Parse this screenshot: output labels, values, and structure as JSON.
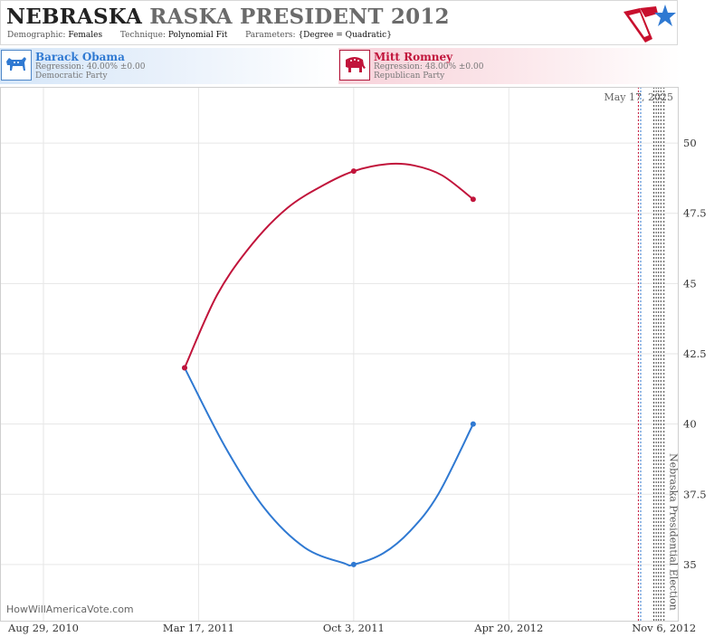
{
  "header": {
    "title_state": "NEBRASKA",
    "title_middle": "RASKA PRESIDENT",
    "title_year": "2012",
    "demographic_label": "Demographic:",
    "demographic_value": "Females",
    "technique_label": "Technique:",
    "technique_value": "Polynomial Fit",
    "parameters_label": "Parameters:",
    "parameters_value": "{Degree = Quadratic}",
    "logo_icon": "star-flag-logo-icon"
  },
  "candidates": [
    {
      "name": "Barack Obama",
      "regression": "Regression: 40.00% ±0.00",
      "party": "Democratic Party",
      "icon": "donkey-icon",
      "color": "#2f79d2"
    },
    {
      "name": "Mitt Romney",
      "regression": "Regression: 48.00% ±0.00",
      "party": "Republican Party",
      "icon": "elephant-icon",
      "color": "#c1143b"
    }
  ],
  "watermark": "HowWillAmericaVote.com",
  "chart_data": {
    "type": "line",
    "date_label": "May 17, 2025",
    "election_label": "Nebraska Presidential Election",
    "x_ticks": [
      "Aug 29, 2010",
      "Mar 17, 2011",
      "Oct 3, 2011",
      "Apr 20, 2012",
      "Nov 6, 2012"
    ],
    "x_range": [
      "2010-07-04",
      "2012-11-25"
    ],
    "y_ticks": [
      35,
      37.5,
      40,
      42.5,
      45,
      47.5,
      50
    ],
    "ylim": [
      33,
      52
    ],
    "grid": true,
    "election_date": "2012-11-06",
    "series": [
      {
        "name": "Barack Obama",
        "color": "#2f79d2",
        "points": [
          {
            "date": "2011-02-27",
            "value": 42
          },
          {
            "date": "2011-10-03",
            "value": 35
          },
          {
            "date": "2012-03-05",
            "value": 40
          }
        ],
        "curve": [
          {
            "date": "2011-02-27",
            "value": 42
          },
          {
            "date": "2011-04-20",
            "value": 39.2
          },
          {
            "date": "2011-06-10",
            "value": 37.0
          },
          {
            "date": "2011-08-01",
            "value": 35.6
          },
          {
            "date": "2011-09-20",
            "value": 35.05
          },
          {
            "date": "2011-10-03",
            "value": 35
          },
          {
            "date": "2011-11-10",
            "value": 35.4
          },
          {
            "date": "2011-12-15",
            "value": 36.2
          },
          {
            "date": "2012-01-20",
            "value": 37.5
          },
          {
            "date": "2012-03-05",
            "value": 40
          }
        ]
      },
      {
        "name": "Mitt Romney",
        "color": "#c1143b",
        "points": [
          {
            "date": "2011-02-27",
            "value": 42
          },
          {
            "date": "2011-10-03",
            "value": 49
          },
          {
            "date": "2012-03-05",
            "value": 48
          }
        ],
        "curve": [
          {
            "date": "2011-02-27",
            "value": 42
          },
          {
            "date": "2011-04-10",
            "value": 44.6
          },
          {
            "date": "2011-05-25",
            "value": 46.4
          },
          {
            "date": "2011-07-10",
            "value": 47.7
          },
          {
            "date": "2011-08-25",
            "value": 48.5
          },
          {
            "date": "2011-10-03",
            "value": 49
          },
          {
            "date": "2011-11-15",
            "value": 49.25
          },
          {
            "date": "2011-12-20",
            "value": 49.2
          },
          {
            "date": "2012-01-25",
            "value": 48.85
          },
          {
            "date": "2012-03-05",
            "value": 48
          }
        ]
      }
    ],
    "reference_lines": [
      {
        "date": "2012-10-04",
        "color": "#c1143b"
      },
      {
        "date": "2012-10-07",
        "color": "#2f79d2"
      },
      {
        "date": "2012-10-24",
        "color": "#444444"
      },
      {
        "date": "2012-10-27",
        "color": "#444444"
      },
      {
        "date": "2012-10-30",
        "color": "#444444"
      },
      {
        "date": "2012-11-02",
        "color": "#444444"
      },
      {
        "date": "2012-11-06",
        "color": "#444444"
      }
    ]
  }
}
